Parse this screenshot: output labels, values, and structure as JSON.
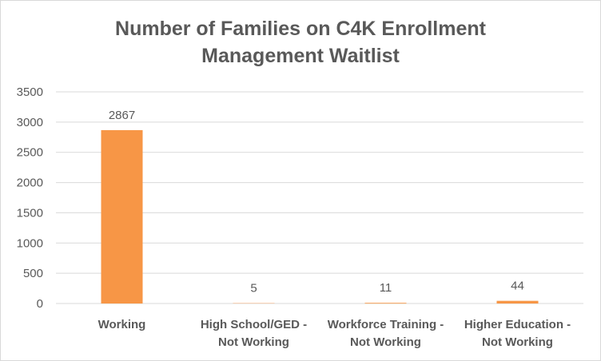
{
  "chart_data": {
    "type": "bar",
    "title_lines": [
      "Number of Families on C4K Enrollment",
      "Management Waitlist"
    ],
    "categories": [
      [
        "Working"
      ],
      [
        "High School/GED -",
        "Not Working"
      ],
      [
        "Workforce Training -",
        "Not Working"
      ],
      [
        "Higher Education -",
        "Not Working"
      ]
    ],
    "values": [
      2867,
      5,
      11,
      44
    ],
    "data_labels": [
      "2867",
      "5",
      "11",
      "44"
    ],
    "yticks": [
      0,
      500,
      1000,
      1500,
      2000,
      2500,
      3000,
      3500
    ],
    "ylim": [
      0,
      3500
    ],
    "grid": true,
    "legend": "none",
    "colors": {
      "bar": "#f79646",
      "grid": "#d9d9d9",
      "text": "#595959"
    }
  }
}
